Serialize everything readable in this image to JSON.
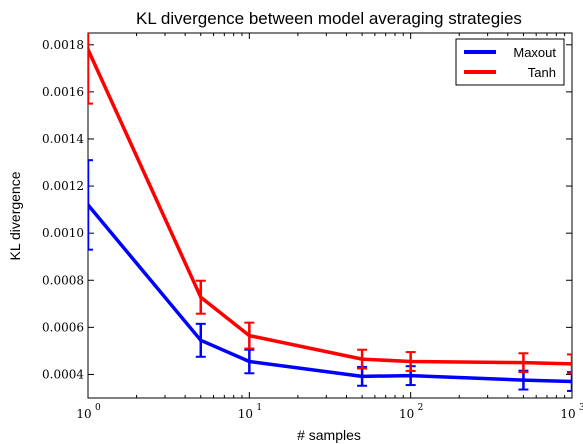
{
  "chart_data": {
    "type": "line",
    "title": "KL divergence between model averaging strategies",
    "xlabel": "# samples",
    "ylabel": "KL divergence",
    "x_scale": "log",
    "xlim": [
      1,
      1000
    ],
    "ylim": [
      0.0003,
      0.00185
    ],
    "x_ticks": [
      {
        "value": 1,
        "base": "10",
        "exp": "0"
      },
      {
        "value": 10,
        "base": "10",
        "exp": "1"
      },
      {
        "value": 100,
        "base": "10",
        "exp": "2"
      },
      {
        "value": 1000,
        "base": "10",
        "exp": "3"
      }
    ],
    "y_ticks": [
      {
        "value": 0.0004,
        "label": "0.0004"
      },
      {
        "value": 0.0006,
        "label": "0.0006"
      },
      {
        "value": 0.0008,
        "label": "0.0008"
      },
      {
        "value": 0.001,
        "label": "0.0010"
      },
      {
        "value": 0.0012,
        "label": "0.0012"
      },
      {
        "value": 0.0014,
        "label": "0.0014"
      },
      {
        "value": 0.0016,
        "label": "0.0016"
      },
      {
        "value": 0.0018,
        "label": "0.0018"
      }
    ],
    "x": [
      1,
      5,
      10,
      50,
      100,
      500,
      1000
    ],
    "series": [
      {
        "name": "Maxout",
        "color": "#0000ff",
        "values": [
          0.00112,
          0.000545,
          0.000455,
          0.000392,
          0.000395,
          0.000376,
          0.00037
        ],
        "errors": [
          0.00019,
          7e-05,
          5e-05,
          4e-05,
          4e-05,
          4e-05,
          4e-05
        ]
      },
      {
        "name": "Tanh",
        "color": "#ff0000",
        "values": [
          0.00178,
          0.000728,
          0.000565,
          0.000465,
          0.000455,
          0.00045,
          0.000445
        ],
        "errors": [
          0.00023,
          7e-05,
          5.5e-05,
          4e-05,
          4e-05,
          4e-05,
          4e-05
        ]
      }
    ],
    "legend_position": "top-right",
    "grid": false
  }
}
